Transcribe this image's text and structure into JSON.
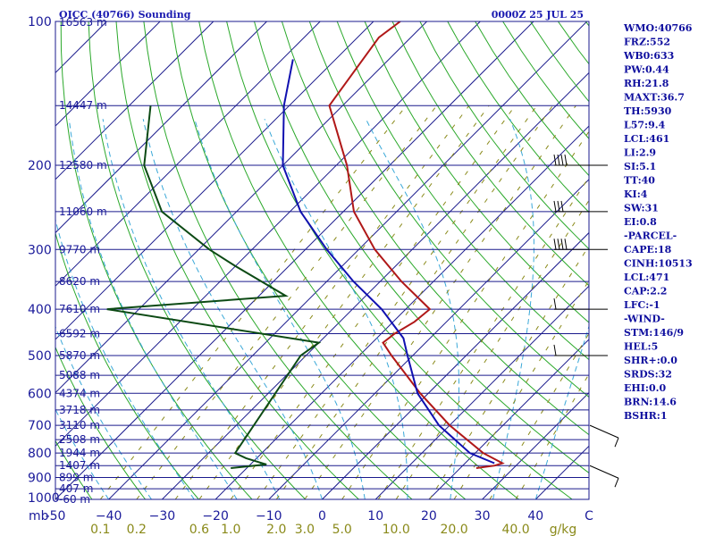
{
  "header": {
    "left_title": "OICC (40766) Sounding",
    "right_title": "0000Z 25 JUL 25"
  },
  "chart_data": {
    "type": "skew-t",
    "pressure_unit": "mb",
    "temperature_unit": "C",
    "mixing_ratio_unit": "g/kg",
    "pressure_range": [
      100,
      1000
    ],
    "temperature_range_at_bottom": [
      -50,
      50
    ],
    "pressure_labels": [
      100,
      200,
      300,
      400,
      500,
      600,
      700,
      800,
      900,
      1000
    ],
    "temperature_ticks": [
      -50,
      -40,
      -30,
      -20,
      -10,
      0,
      10,
      20,
      30,
      40
    ],
    "temperature_tick_labels": [
      "-50",
      "−40",
      "−30",
      "−20",
      "−10",
      "0",
      "10",
      "20",
      "30",
      "40"
    ],
    "end_label": "C",
    "mixing_ratio_labels": [
      {
        "text": "0.1",
        "value": 0.1
      },
      {
        "text": "0.2",
        "value": 0.2
      },
      {
        "text": "0.6",
        "value": 0.6
      },
      {
        "text": "1.0",
        "value": 1.0
      },
      {
        "text": "2.0",
        "value": 2.0
      },
      {
        "text": "3.0",
        "value": 3.0
      },
      {
        "text": "5.0",
        "value": 5.0
      },
      {
        "text": "10.0",
        "value": 10.0
      },
      {
        "text": "20.0",
        "value": 20.0
      },
      {
        "text": "40.0",
        "value": 40.0
      }
    ],
    "height_levels": [
      {
        "pressure": 100,
        "label": "16563 m"
      },
      {
        "pressure": 150,
        "label": "14447 m"
      },
      {
        "pressure": 200,
        "label": "12580 m"
      },
      {
        "pressure": 250,
        "label": "11060 m"
      },
      {
        "pressure": 300,
        "label": "9770 m"
      },
      {
        "pressure": 350,
        "label": "8620 m"
      },
      {
        "pressure": 400,
        "label": "7610 m"
      },
      {
        "pressure": 450,
        "label": "6592 m"
      },
      {
        "pressure": 500,
        "label": "5870 m"
      },
      {
        "pressure": 550,
        "label": "5088 m"
      },
      {
        "pressure": 600,
        "label": "4374 m"
      },
      {
        "pressure": 650,
        "label": "3718 m"
      },
      {
        "pressure": 700,
        "label": "3110 m"
      },
      {
        "pressure": 750,
        "label": "2508 m"
      },
      {
        "pressure": 800,
        "label": "1944 m"
      },
      {
        "pressure": 850,
        "label": "1407 m"
      },
      {
        "pressure": 900,
        "label": "899 m"
      },
      {
        "pressure": 950,
        "label": "407 m"
      },
      {
        "pressure": 1000,
        "label": "-60 m"
      }
    ],
    "series": [
      {
        "name": "temperature",
        "color": "#b01818",
        "points": [
          {
            "p": 100,
            "t": -75
          },
          {
            "p": 108,
            "t": -76
          },
          {
            "p": 150,
            "t": -72.5
          },
          {
            "p": 200,
            "t": -58
          },
          {
            "p": 250,
            "t": -48
          },
          {
            "p": 300,
            "t": -37
          },
          {
            "p": 350,
            "t": -26
          },
          {
            "p": 400,
            "t": -15.5
          },
          {
            "p": 425,
            "t": -16
          },
          {
            "p": 450,
            "t": -17.5
          },
          {
            "p": 470,
            "t": -18
          },
          {
            "p": 500,
            "t": -14
          },
          {
            "p": 600,
            "t": -1.5
          },
          {
            "p": 700,
            "t": 10
          },
          {
            "p": 800,
            "t": 21.5
          },
          {
            "p": 840,
            "t": 27
          },
          {
            "p": 850,
            "t": 26
          },
          {
            "p": 860,
            "t": 23
          }
        ]
      },
      {
        "name": "dewpoint",
        "color": "#0c4a14",
        "points": [
          {
            "p": 150,
            "t": -106
          },
          {
            "p": 200,
            "t": -96
          },
          {
            "p": 250,
            "t": -84
          },
          {
            "p": 300,
            "t": -68
          },
          {
            "p": 325,
            "t": -60
          },
          {
            "p": 375,
            "t": -45
          },
          {
            "p": 400,
            "t": -76
          },
          {
            "p": 470,
            "t": -30
          },
          {
            "p": 500,
            "t": -31
          },
          {
            "p": 800,
            "t": -25
          },
          {
            "p": 820,
            "t": -22
          },
          {
            "p": 845,
            "t": -17
          },
          {
            "p": 860,
            "t": -23
          }
        ]
      },
      {
        "name": "parcel",
        "color": "#1010b0",
        "points": [
          {
            "p": 120,
            "t": -88
          },
          {
            "p": 150,
            "t": -81
          },
          {
            "p": 200,
            "t": -70
          },
          {
            "p": 250,
            "t": -58
          },
          {
            "p": 300,
            "t": -46
          },
          {
            "p": 350,
            "t": -35
          },
          {
            "p": 400,
            "t": -24.5
          },
          {
            "p": 460,
            "t": -15
          },
          {
            "p": 500,
            "t": -11
          },
          {
            "p": 600,
            "t": -2
          },
          {
            "p": 700,
            "t": 8
          },
          {
            "p": 800,
            "t": 19
          },
          {
            "p": 840,
            "t": 25.5
          }
        ]
      }
    ],
    "wind_barbs": [
      {
        "p": 200,
        "barbs": 4
      },
      {
        "p": 250,
        "barbs": 3
      },
      {
        "p": 300,
        "barbs": 4
      },
      {
        "p": 400,
        "barbs": 1
      },
      {
        "p": 500,
        "barbs": 1
      },
      {
        "p": 700,
        "barbs": 1
      },
      {
        "p": 850,
        "barbs": 1
      }
    ]
  },
  "indices": [
    "WMO:40766",
    "FRZ:552",
    "WB0:633",
    "PW:0.44",
    "RH:21.8",
    "MAXT:36.7",
    "TH:5930",
    "L57:9.4",
    "LCL:461",
    "LI:2.9",
    "SI:5.1",
    "TT:40",
    "KI:4",
    "SW:31",
    "EI:0.8",
    "-PARCEL-",
    "CAPE:18",
    "CINH:10513",
    "LCL:471",
    "CAP:2.2",
    "LFC:-1",
    "-WIND-",
    "STM:146/9",
    "HEL:5",
    "SHR+:0.0",
    "SRDS:32",
    "EHI:0.0",
    "BRN:14.6",
    "BSHR:1"
  ],
  "colors": {
    "isobar": "#1a1a8c",
    "isotherm": "#1a1a8c",
    "dry_adiabat": "#2aa82a",
    "moist_adiabat": "#3aa8d8",
    "mixing_ratio": "#8a8a1a",
    "temperature": "#b01818",
    "dewpoint": "#0c4a14",
    "parcel": "#1010b0",
    "text": "#1a1a9a"
  }
}
